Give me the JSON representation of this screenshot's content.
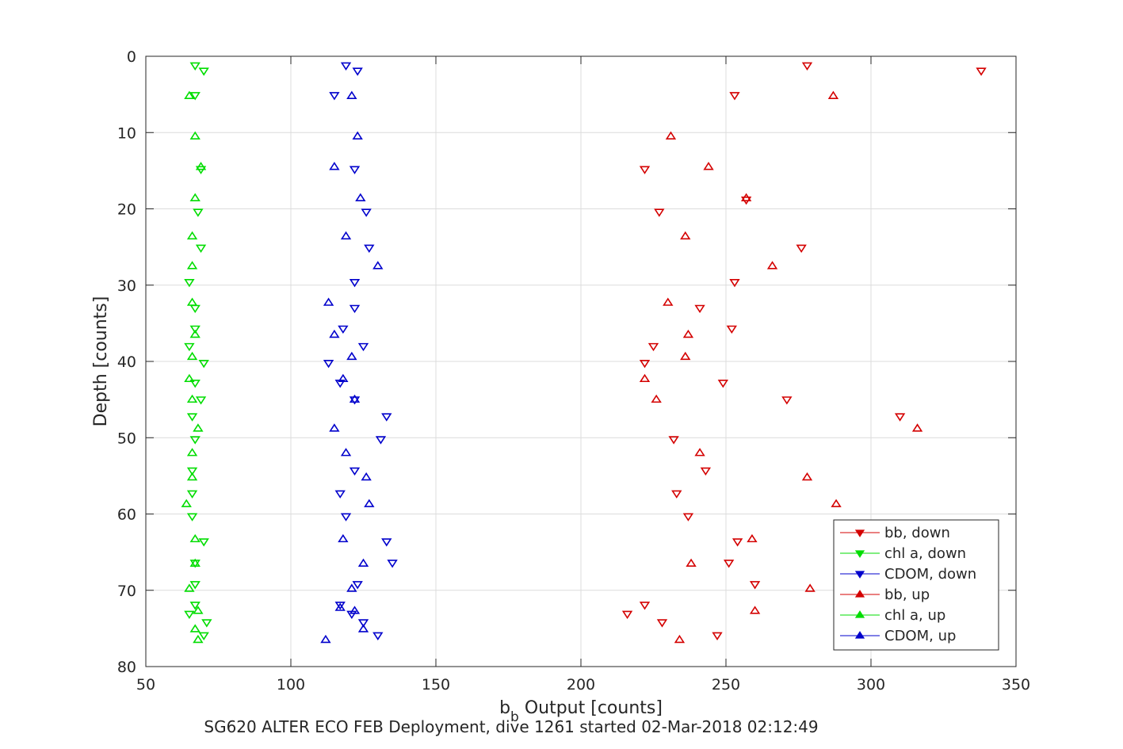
{
  "chart_data": {
    "type": "scatter",
    "xlabel_main": "b",
    "xlabel_sub": "b",
    "xlabel_rest": " Output [counts]",
    "ylabel": "Depth [counts]",
    "subtitle": "SG620 ALTER ECO FEB Deployment, dive 1261 started 02-Mar-2018 02:12:49",
    "xlim": [
      50,
      350
    ],
    "ylim": [
      0,
      80
    ],
    "y_reversed": true,
    "grid": true,
    "legend_position": "lower-right",
    "xticks": [
      "50",
      "100",
      "150",
      "200",
      "250",
      "300",
      "350"
    ],
    "yticks": [
      "0",
      "10",
      "20",
      "30",
      "40",
      "50",
      "60",
      "70",
      "80"
    ],
    "series": [
      {
        "name": "bb, down",
        "color": "#d40000",
        "marker": "triangle-down",
        "points": [
          [
            278,
            1.2
          ],
          [
            338,
            1.9
          ],
          [
            253,
            5.1
          ],
          [
            222,
            14.8
          ],
          [
            227,
            20.4
          ],
          [
            276,
            25.1
          ],
          [
            253,
            29.6
          ],
          [
            241,
            33.0
          ],
          [
            252,
            35.7
          ],
          [
            225,
            38.0
          ],
          [
            222,
            40.2
          ],
          [
            249,
            42.8
          ],
          [
            271,
            45.0
          ],
          [
            310,
            47.2
          ],
          [
            232,
            50.2
          ],
          [
            243,
            54.3
          ],
          [
            233,
            57.3
          ],
          [
            237,
            60.3
          ],
          [
            254,
            63.6
          ],
          [
            251,
            66.4
          ],
          [
            260,
            69.2
          ],
          [
            222,
            71.9
          ],
          [
            216,
            73.1
          ],
          [
            228,
            74.2
          ],
          [
            247,
            75.9
          ],
          [
            257,
            18.8
          ]
        ]
      },
      {
        "name": "chl a, down",
        "color": "#00dd00",
        "marker": "triangle-down",
        "points": [
          [
            67,
            1.2
          ],
          [
            70,
            1.9
          ],
          [
            67,
            5.1
          ],
          [
            69,
            14.8
          ],
          [
            68,
            20.4
          ],
          [
            69,
            25.1
          ],
          [
            65,
            29.6
          ],
          [
            67,
            33.0
          ],
          [
            67,
            35.7
          ],
          [
            65,
            38.0
          ],
          [
            70,
            40.2
          ],
          [
            67,
            42.8
          ],
          [
            69,
            45.0
          ],
          [
            66,
            47.2
          ],
          [
            67,
            50.2
          ],
          [
            66,
            54.3
          ],
          [
            66,
            57.3
          ],
          [
            66,
            60.3
          ],
          [
            70,
            63.6
          ],
          [
            67,
            66.4
          ],
          [
            67,
            69.2
          ],
          [
            67,
            71.9
          ],
          [
            65,
            73.1
          ],
          [
            71,
            74.2
          ],
          [
            70,
            75.9
          ]
        ]
      },
      {
        "name": "CDOM, down",
        "color": "#0000cc",
        "marker": "triangle-down",
        "points": [
          [
            119,
            1.2
          ],
          [
            123,
            1.9
          ],
          [
            115,
            5.1
          ],
          [
            122,
            14.8
          ],
          [
            126,
            20.4
          ],
          [
            127,
            25.1
          ],
          [
            122,
            29.6
          ],
          [
            122,
            33.0
          ],
          [
            118,
            35.7
          ],
          [
            125,
            38.0
          ],
          [
            113,
            40.2
          ],
          [
            117,
            42.8
          ],
          [
            122,
            45.0
          ],
          [
            133,
            47.2
          ],
          [
            131,
            50.2
          ],
          [
            122,
            54.3
          ],
          [
            117,
            57.3
          ],
          [
            119,
            60.3
          ],
          [
            133,
            63.6
          ],
          [
            135,
            66.4
          ],
          [
            123,
            69.2
          ],
          [
            117,
            71.9
          ],
          [
            121,
            73.1
          ],
          [
            125,
            74.2
          ],
          [
            130,
            75.9
          ]
        ]
      },
      {
        "name": "bb, up",
        "color": "#d40000",
        "marker": "triangle-up",
        "points": [
          [
            287,
            5.2
          ],
          [
            231,
            10.5
          ],
          [
            244,
            14.5
          ],
          [
            257,
            18.6
          ],
          [
            236,
            23.6
          ],
          [
            266,
            27.5
          ],
          [
            230,
            32.3
          ],
          [
            237,
            36.5
          ],
          [
            236,
            39.4
          ],
          [
            222,
            42.3
          ],
          [
            226,
            45.0
          ],
          [
            316,
            48.8
          ],
          [
            241,
            52.0
          ],
          [
            278,
            55.2
          ],
          [
            288,
            58.7
          ],
          [
            259,
            63.3
          ],
          [
            238,
            66.5
          ],
          [
            279,
            69.8
          ],
          [
            260,
            72.7
          ],
          [
            234,
            76.5
          ]
        ]
      },
      {
        "name": "chl a, up",
        "color": "#00dd00",
        "marker": "triangle-up",
        "points": [
          [
            65,
            5.2
          ],
          [
            67,
            10.5
          ],
          [
            69,
            14.5
          ],
          [
            67,
            18.6
          ],
          [
            66,
            23.6
          ],
          [
            66,
            27.5
          ],
          [
            66,
            32.3
          ],
          [
            67,
            36.5
          ],
          [
            66,
            39.4
          ],
          [
            65,
            42.3
          ],
          [
            66,
            45.0
          ],
          [
            68,
            48.8
          ],
          [
            66,
            52.0
          ],
          [
            66,
            55.2
          ],
          [
            64,
            58.7
          ],
          [
            67,
            63.3
          ],
          [
            67,
            66.5
          ],
          [
            65,
            69.8
          ],
          [
            68,
            72.7
          ],
          [
            67,
            75.1
          ],
          [
            68,
            76.5
          ]
        ]
      },
      {
        "name": "CDOM, up",
        "color": "#0000cc",
        "marker": "triangle-up",
        "points": [
          [
            121,
            5.2
          ],
          [
            123,
            10.5
          ],
          [
            115,
            14.5
          ],
          [
            124,
            18.6
          ],
          [
            119,
            23.6
          ],
          [
            130,
            27.5
          ],
          [
            113,
            32.3
          ],
          [
            115,
            36.5
          ],
          [
            121,
            39.4
          ],
          [
            118,
            42.3
          ],
          [
            122,
            45.0
          ],
          [
            115,
            48.8
          ],
          [
            119,
            52.0
          ],
          [
            126,
            55.2
          ],
          [
            127,
            58.7
          ],
          [
            118,
            63.3
          ],
          [
            125,
            66.5
          ],
          [
            121,
            69.8
          ],
          [
            122,
            72.7
          ],
          [
            117,
            72.3
          ],
          [
            125,
            75.1
          ],
          [
            112,
            76.5
          ]
        ]
      }
    ]
  }
}
